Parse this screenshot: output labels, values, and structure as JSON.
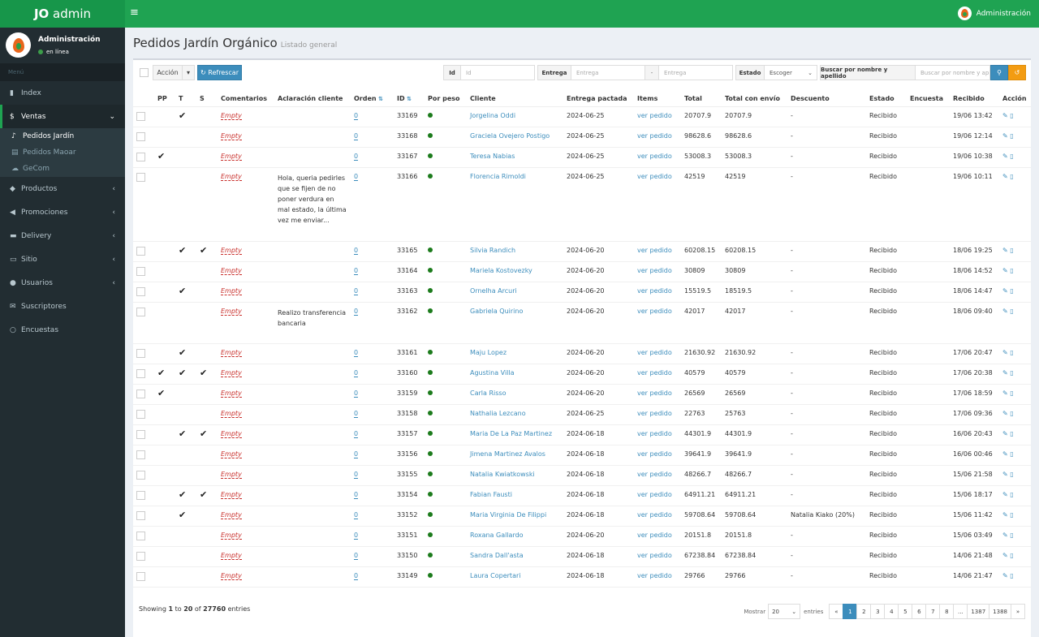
{
  "app": {
    "logo_bold": "JO",
    "logo_rest": " admin",
    "top_user": "Administración"
  },
  "sidebar": {
    "user_name": "Administración",
    "user_status": "en línea",
    "menu_header": "Menú",
    "items": [
      {
        "label": "Index",
        "icon": "bar-chart-icon"
      },
      {
        "label": "Ventas",
        "icon": "dollar-icon"
      },
      {
        "label": "Productos",
        "icon": "tags-icon"
      },
      {
        "label": "Promociones",
        "icon": "bullhorn-icon"
      },
      {
        "label": "Delivery",
        "icon": "truck-icon"
      },
      {
        "label": "Sitio",
        "icon": "monitor-icon"
      },
      {
        "label": "Usuarios",
        "icon": "users-icon"
      },
      {
        "label": "Suscriptores",
        "icon": "envelope-icon"
      },
      {
        "label": "Encuestas",
        "icon": "comment-icon"
      }
    ],
    "subitems": [
      {
        "label": "Pedidos Jardín"
      },
      {
        "label": "Pedidos Maoar"
      },
      {
        "label": "GeCom"
      }
    ]
  },
  "page": {
    "title": "Pedidos Jardín Orgánico",
    "subtitle": "Listado general"
  },
  "toolbar": {
    "accion": "Acción",
    "refrescar": "Refrescar",
    "id_label": "Id",
    "id_placeholder": "Id",
    "entrega_label": "Entrega",
    "entrega_from_placeholder": "Entrega",
    "sep": "-",
    "entrega_to_placeholder": "Entrega",
    "estado_label": "Estado",
    "estado_value": "Escoger",
    "buscar_label": "Buscar por nombre y apellido",
    "buscar_placeholder": "Buscar por nombre y ap"
  },
  "table": {
    "headers": [
      "PP",
      "T",
      "S",
      "Comentarios",
      "Aclaración cliente",
      "Orden",
      "ID",
      "Por peso",
      "Cliente",
      "Entrega pactada",
      "Items",
      "Total",
      "Total con envío",
      "Descuento",
      "Estado",
      "Encuesta",
      "Recibido",
      "Acción"
    ],
    "rows": [
      {
        "pp": "",
        "t": "✔",
        "s": "",
        "com": "Empty",
        "acl": "",
        "orden": "0",
        "id": "33169",
        "cliente": "Jorgelina Oddi",
        "entrega": "2024-06-25",
        "items": "ver pedido",
        "total": "20707.9",
        "envio": "20707.9",
        "desc": "-",
        "estado": "Recibido",
        "encuesta": "",
        "recibido": "19/06 13:42"
      },
      {
        "pp": "",
        "t": "",
        "s": "",
        "com": "Empty",
        "acl": "",
        "orden": "0",
        "id": "33168",
        "cliente": "Graciela Ovejero Postigo",
        "entrega": "2024-06-25",
        "items": "ver pedido",
        "total": "98628.6",
        "envio": "98628.6",
        "desc": "-",
        "estado": "Recibido",
        "encuesta": "",
        "recibido": "19/06 12:14"
      },
      {
        "pp": "✔",
        "t": "",
        "s": "",
        "com": "Empty",
        "acl": "",
        "orden": "0",
        "id": "33167",
        "cliente": "Teresa Nabias",
        "entrega": "2024-06-25",
        "items": "ver pedido",
        "total": "53008.3",
        "envio": "53008.3",
        "desc": "-",
        "estado": "Recibido",
        "encuesta": "",
        "recibido": "19/06 10:38"
      },
      {
        "pp": "",
        "t": "",
        "s": "",
        "com": "Empty",
        "acl": "Hola, queria pedirles que se fijen de no poner verdura en mal estado, la última vez me enviar...",
        "orden": "0",
        "id": "33166",
        "cliente": "Florencia Rimoldi",
        "entrega": "2024-06-25",
        "items": "ver pedido",
        "total": "42519",
        "envio": "42519",
        "desc": "-",
        "estado": "Recibido",
        "encuesta": "",
        "recibido": "19/06 10:11"
      },
      {
        "pp": "",
        "t": "✔",
        "s": "✔",
        "com": "Empty",
        "acl": "",
        "orden": "0",
        "id": "33165",
        "cliente": "Silvia Randich",
        "entrega": "2024-06-20",
        "items": "ver pedido",
        "total": "60208.15",
        "envio": "60208.15",
        "desc": "-",
        "estado": "Recibido",
        "encuesta": "",
        "recibido": "18/06 19:25"
      },
      {
        "pp": "",
        "t": "",
        "s": "",
        "com": "Empty",
        "acl": "",
        "orden": "0",
        "id": "33164",
        "cliente": "Mariela Kostovezky",
        "entrega": "2024-06-20",
        "items": "ver pedido",
        "total": "30809",
        "envio": "30809",
        "desc": "-",
        "estado": "Recibido",
        "encuesta": "",
        "recibido": "18/06 14:52"
      },
      {
        "pp": "",
        "t": "✔",
        "s": "",
        "com": "Empty",
        "acl": "",
        "orden": "0",
        "id": "33163",
        "cliente": "Ornelha Arcuri",
        "entrega": "2024-06-20",
        "items": "ver pedido",
        "total": "15519.5",
        "envio": "18519.5",
        "desc": "-",
        "estado": "Recibido",
        "encuesta": "",
        "recibido": "18/06 14:47"
      },
      {
        "pp": "",
        "t": "",
        "s": "",
        "com": "Empty",
        "acl": "Realizo transferencia bancaria",
        "orden": "0",
        "id": "33162",
        "cliente": "Gabriela Quirino",
        "entrega": "2024-06-20",
        "items": "ver pedido",
        "total": "42017",
        "envio": "42017",
        "desc": "-",
        "estado": "Recibido",
        "encuesta": "",
        "recibido": "18/06 09:40"
      },
      {
        "pp": "",
        "t": "✔",
        "s": "",
        "com": "Empty",
        "acl": "",
        "orden": "0",
        "id": "33161",
        "cliente": "Maju Lopez",
        "entrega": "2024-06-20",
        "items": "ver pedido",
        "total": "21630.92",
        "envio": "21630.92",
        "desc": "-",
        "estado": "Recibido",
        "encuesta": "",
        "recibido": "17/06 20:47"
      },
      {
        "pp": "✔",
        "t": "✔",
        "s": "✔",
        "com": "Empty",
        "acl": "",
        "orden": "0",
        "id": "33160",
        "cliente": "Agustina Villa",
        "entrega": "2024-06-20",
        "items": "ver pedido",
        "total": "40579",
        "envio": "40579",
        "desc": "-",
        "estado": "Recibido",
        "encuesta": "",
        "recibido": "17/06 20:38"
      },
      {
        "pp": "✔",
        "t": "",
        "s": "",
        "com": "Empty",
        "acl": "",
        "orden": "0",
        "id": "33159",
        "cliente": "Carla Risso",
        "entrega": "2024-06-20",
        "items": "ver pedido",
        "total": "26569",
        "envio": "26569",
        "desc": "-",
        "estado": "Recibido",
        "encuesta": "",
        "recibido": "17/06 18:59"
      },
      {
        "pp": "",
        "t": "",
        "s": "",
        "com": "Empty",
        "acl": "",
        "orden": "0",
        "id": "33158",
        "cliente": "Nathalia Lezcano",
        "entrega": "2024-06-25",
        "items": "ver pedido",
        "total": "22763",
        "envio": "25763",
        "desc": "-",
        "estado": "Recibido",
        "encuesta": "",
        "recibido": "17/06 09:36"
      },
      {
        "pp": "",
        "t": "✔",
        "s": "✔",
        "com": "Empty",
        "acl": "",
        "orden": "0",
        "id": "33157",
        "cliente": "Maria De La Paz Martinez",
        "entrega": "2024-06-18",
        "items": "ver pedido",
        "total": "44301.9",
        "envio": "44301.9",
        "desc": "-",
        "estado": "Recibido",
        "encuesta": "",
        "recibido": "16/06 20:43"
      },
      {
        "pp": "",
        "t": "",
        "s": "",
        "com": "Empty",
        "acl": "",
        "orden": "0",
        "id": "33156",
        "cliente": "Jimena Martinez Avalos",
        "entrega": "2024-06-18",
        "items": "ver pedido",
        "total": "39641.9",
        "envio": "39641.9",
        "desc": "-",
        "estado": "Recibido",
        "encuesta": "",
        "recibido": "16/06 00:46"
      },
      {
        "pp": "",
        "t": "",
        "s": "",
        "com": "Empty",
        "acl": "",
        "orden": "0",
        "id": "33155",
        "cliente": "Natalia Kwiatkowski",
        "entrega": "2024-06-18",
        "items": "ver pedido",
        "total": "48266.7",
        "envio": "48266.7",
        "desc": "-",
        "estado": "Recibido",
        "encuesta": "",
        "recibido": "15/06 21:58"
      },
      {
        "pp": "",
        "t": "✔",
        "s": "✔",
        "com": "Empty",
        "acl": "",
        "orden": "0",
        "id": "33154",
        "cliente": "Fabian Fausti",
        "entrega": "2024-06-18",
        "items": "ver pedido",
        "total": "64911.21",
        "envio": "64911.21",
        "desc": "-",
        "estado": "Recibido",
        "encuesta": "",
        "recibido": "15/06 18:17"
      },
      {
        "pp": "",
        "t": "✔",
        "s": "",
        "com": "Empty",
        "acl": "",
        "orden": "0",
        "id": "33152",
        "cliente": "Maria Virginia De Filippi",
        "entrega": "2024-06-18",
        "items": "ver pedido",
        "total": "59708.64",
        "envio": "59708.64",
        "desc": "Natalia Kiako (20%)",
        "estado": "Recibido",
        "encuesta": "",
        "recibido": "15/06 11:42"
      },
      {
        "pp": "",
        "t": "",
        "s": "",
        "com": "Empty",
        "acl": "",
        "orden": "0",
        "id": "33151",
        "cliente": "Roxana Gallardo",
        "entrega": "2024-06-20",
        "items": "ver pedido",
        "total": "20151.8",
        "envio": "20151.8",
        "desc": "-",
        "estado": "Recibido",
        "encuesta": "",
        "recibido": "15/06 03:49"
      },
      {
        "pp": "",
        "t": "",
        "s": "",
        "com": "Empty",
        "acl": "",
        "orden": "0",
        "id": "33150",
        "cliente": "Sandra Dall'asta",
        "entrega": "2024-06-18",
        "items": "ver pedido",
        "total": "67238.84",
        "envio": "67238.84",
        "desc": "-",
        "estado": "Recibido",
        "encuesta": "",
        "recibido": "14/06 21:48"
      },
      {
        "pp": "",
        "t": "",
        "s": "",
        "com": "Empty",
        "acl": "",
        "orden": "0",
        "id": "33149",
        "cliente": "Laura Copertari",
        "entrega": "2024-06-18",
        "items": "ver pedido",
        "total": "29766",
        "envio": "29766",
        "desc": "-",
        "estado": "Recibido",
        "encuesta": "",
        "recibido": "14/06 21:47"
      }
    ]
  },
  "footer": {
    "showing": "Showing",
    "from": "1",
    "to_word": "to",
    "to": "20",
    "of_word": "of",
    "total": "27760",
    "entries": "entries",
    "mostrar": "Mostrar",
    "per_page": "20",
    "entries2": "entries",
    "pages": [
      "«",
      "1",
      "2",
      "3",
      "4",
      "5",
      "6",
      "7",
      "8",
      "...",
      "1387",
      "1388",
      "»"
    ]
  }
}
